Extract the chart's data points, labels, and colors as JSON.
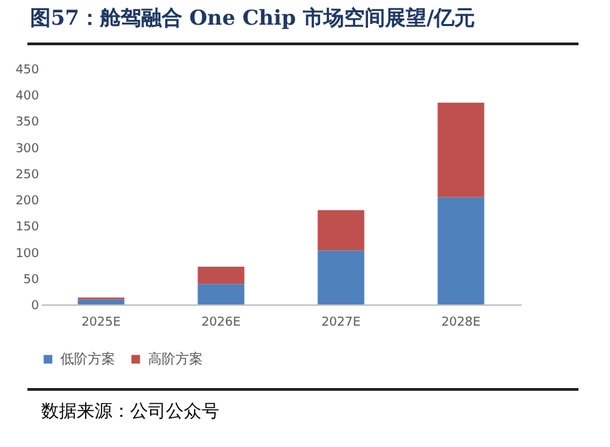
{
  "chart_data": {
    "type": "bar",
    "title": "图57：舱驾融合 One Chip 市场空间展望/亿元",
    "categories": [
      "2025E",
      "2026E",
      "2027E",
      "2028E"
    ],
    "series": [
      {
        "name": "低阶方案",
        "color": "#4f81bd",
        "values": [
          10,
          39,
          103,
          205
        ]
      },
      {
        "name": "高阶方案",
        "color": "#c0504d",
        "values": [
          3,
          33,
          77,
          180
        ]
      }
    ],
    "stacked": true,
    "ylim": [
      0,
      450
    ],
    "yticks": [
      0,
      50,
      100,
      150,
      200,
      250,
      300,
      350,
      400,
      450
    ],
    "grid": false,
    "legend": "bottom",
    "annotations": [
      "数据来源：公司公众号"
    ]
  }
}
